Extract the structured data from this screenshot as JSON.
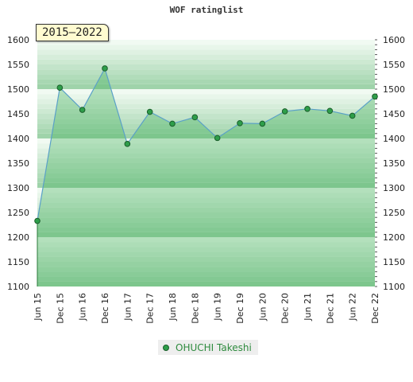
{
  "chart_data": {
    "type": "area",
    "title": "WOF ratinglist",
    "period_label": "2015–2022",
    "categories": [
      "Jun 15",
      "Dec 15",
      "Jun 16",
      "Dec 16",
      "Jun 17",
      "Dec 17",
      "Jun 18",
      "Dec 18",
      "Jun 19",
      "Dec 19",
      "Jun 20",
      "Dec 20",
      "Jun 21",
      "Dec 21",
      "Jun 22",
      "Dec 22"
    ],
    "series": [
      {
        "name": "OHUCHI Takeshi",
        "values": [
          1233,
          1503,
          1458,
          1542,
          1389,
          1454,
          1430,
          1443,
          1401,
          1431,
          1430,
          1455,
          1460,
          1456,
          1446,
          1485
        ]
      }
    ],
    "ylim": [
      1100,
      1600
    ],
    "yticks": [
      1100,
      1150,
      1200,
      1250,
      1300,
      1350,
      1400,
      1450,
      1500,
      1550,
      1600
    ],
    "grid": true,
    "legend_position": "bottom",
    "colors": {
      "line": "#5aa0c8",
      "fill": "#3fae5a",
      "marker": "#2e9e4a",
      "marker_edge": "#1b5e2b",
      "band_dark": "#9fd3aa",
      "band_light": "#f1faf2"
    }
  }
}
